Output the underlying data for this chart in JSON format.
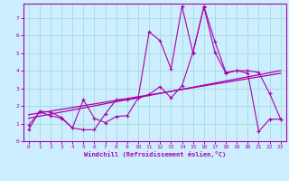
{
  "xlabel": "Windchill (Refroidissement éolien,°C)",
  "bg_color": "#cceeff",
  "grid_color": "#aadddd",
  "line_color": "#aa00aa",
  "xlim": [
    -0.5,
    23.5
  ],
  "ylim": [
    0,
    7.8
  ],
  "xticks": [
    0,
    1,
    2,
    3,
    4,
    5,
    6,
    7,
    8,
    9,
    10,
    11,
    12,
    13,
    14,
    15,
    16,
    17,
    18,
    19,
    20,
    21,
    22,
    23
  ],
  "yticks": [
    0,
    1,
    2,
    3,
    4,
    5,
    6,
    7
  ],
  "line1_x": [
    0,
    1,
    2,
    3,
    4,
    5,
    6,
    7,
    8,
    9,
    10,
    11,
    12,
    13,
    14,
    15,
    16,
    17,
    18,
    19,
    20,
    21,
    22,
    23
  ],
  "line1_y": [
    0.65,
    1.7,
    1.65,
    1.35,
    0.75,
    0.65,
    0.65,
    1.55,
    2.35,
    2.35,
    2.45,
    2.65,
    3.1,
    2.45,
    3.15,
    5.05,
    7.6,
    5.05,
    3.85,
    4.0,
    3.85,
    0.55,
    1.25,
    1.25
  ],
  "line2_x": [
    0,
    1,
    2,
    3,
    4,
    5,
    6,
    7,
    8,
    9,
    10,
    11,
    12,
    13,
    14,
    15,
    16,
    17,
    18,
    19,
    20,
    21,
    22,
    23
  ],
  "line2_y": [
    0.9,
    1.65,
    1.45,
    1.3,
    0.75,
    2.35,
    1.3,
    1.05,
    1.4,
    1.45,
    2.45,
    6.2,
    5.7,
    4.1,
    7.65,
    5.0,
    7.65,
    5.65,
    3.9,
    4.0,
    4.0,
    3.9,
    2.7,
    1.25
  ],
  "line3_x": [
    0,
    23
  ],
  "line3_y": [
    1.3,
    4.0
  ],
  "line4_x": [
    0,
    23
  ],
  "line4_y": [
    1.5,
    3.85
  ],
  "tick_fontsize": 4.5,
  "xlabel_fontsize": 5.0
}
